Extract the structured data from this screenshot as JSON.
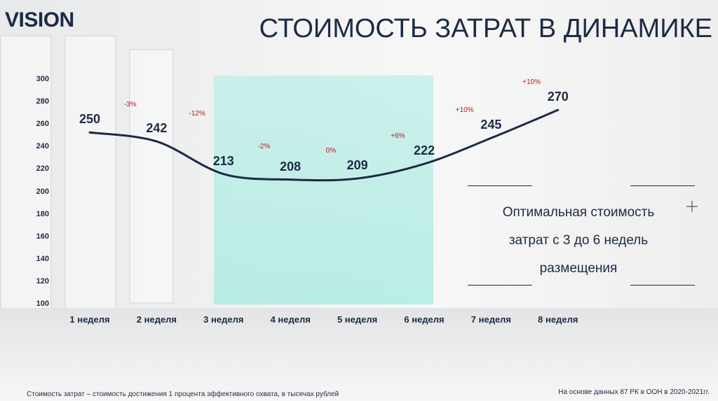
{
  "brand": {
    "logo": "VISION"
  },
  "header": {
    "title": "СТОИМОСТЬ ЗАТРАТ В ДИНАМИКЕ"
  },
  "chart_data": {
    "type": "line",
    "title": "СТОИМОСТЬ ЗАТРАТ В ДИНАМИКЕ",
    "categories": [
      "1 неделя",
      "2 неделя",
      "3 неделя",
      "4 неделя",
      "5 неделя",
      "6 неделя",
      "7 неделя",
      "8 неделя"
    ],
    "values": [
      250,
      242,
      213,
      208,
      209,
      222,
      245,
      270
    ],
    "data_labels": [
      "250",
      "242",
      "213",
      "208",
      "209",
      "222",
      "245",
      "270"
    ],
    "change_labels": [
      "-3%",
      "-12%",
      "-2%",
      "0%",
      "+6%",
      "+10%",
      "+10%"
    ],
    "ylim": [
      100,
      300
    ],
    "yticks": [
      "300",
      "280",
      "260",
      "240",
      "220",
      "200",
      "180",
      "160",
      "140",
      "120",
      "100"
    ],
    "xlabel": "",
    "ylabel": "",
    "grid": false,
    "highlight_range": [
      "3 неделя",
      "6 неделя"
    ],
    "line_color": "#1c2b44",
    "highlight_color": "#bfeee8",
    "change_color": "#c0141b"
  },
  "note": {
    "line1": "Оптимальная стоимость",
    "line2": "затрат с 3 до 6 недель",
    "line3": "размещения"
  },
  "footer": {
    "left": "Стоимость затрат – стоимость достижения 1 процента эффективного охвата, в тысячах рублей",
    "right": "На основе данных 87 РК в ООН в 2020-2021гг."
  }
}
